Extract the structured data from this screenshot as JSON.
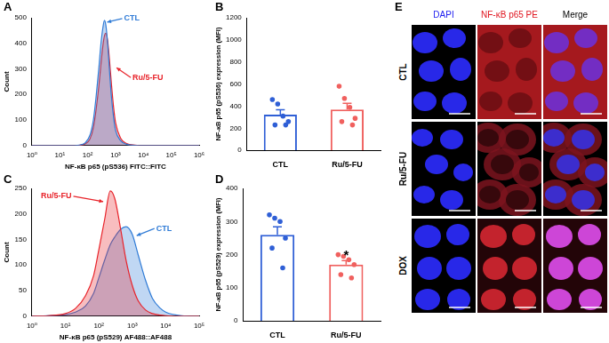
{
  "chart_data": [
    {
      "panel": "A",
      "type": "line",
      "x": [
        1,
        20,
        50,
        80,
        120,
        160,
        200,
        250,
        300,
        350,
        400,
        450,
        520,
        600,
        700,
        850,
        1000,
        1500,
        2500,
        5000,
        10000,
        1000000
      ],
      "series": [
        {
          "name": "CTL",
          "color": "#2f7bd6",
          "values": [
            0,
            0,
            2,
            10,
            40,
            100,
            190,
            300,
            400,
            460,
            490,
            470,
            400,
            300,
            200,
            110,
            60,
            20,
            5,
            1,
            0,
            0
          ]
        },
        {
          "name": "Ru/5-FU",
          "color": "#e8232a",
          "values": [
            0,
            0,
            1,
            6,
            25,
            70,
            140,
            230,
            320,
            390,
            430,
            440,
            410,
            340,
            250,
            150,
            90,
            30,
            8,
            2,
            0,
            0
          ]
        }
      ],
      "x_label": "NF-κB p65 (pS536) FITC::FITC",
      "y_label": "Count",
      "log": "x",
      "xlim": [
        1,
        1000000
      ],
      "xticks": [
        {
          "value": 1,
          "label": "10⁰"
        },
        {
          "value": 10,
          "label": "10¹"
        },
        {
          "value": 100,
          "label": "10²"
        },
        {
          "value": 1000,
          "label": "10³"
        },
        {
          "value": 10000,
          "label": "10⁴"
        },
        {
          "value": 100000,
          "label": "10⁵"
        },
        {
          "value": 1000000,
          "label": "10⁶"
        }
      ],
      "ylim": [
        0,
        500
      ],
      "yticks": [
        0,
        100,
        200,
        300,
        400,
        500
      ],
      "grid": false
    },
    {
      "panel": "B",
      "type": "bar",
      "categories": [
        "CTL",
        "Ru/5-FU"
      ],
      "values": [
        323,
        370
      ],
      "errors": [
        45,
        55
      ],
      "points": [
        [
          460,
          420,
          310,
          260,
          230,
          230
        ],
        [
          580,
          470,
          390,
          290,
          260,
          230
        ]
      ],
      "colors": [
        "#2f5fd6",
        "#f0605e"
      ],
      "y_label": "NF-κB p65 (pS536) expression (MFI)",
      "ylim": [
        0,
        1200
      ],
      "yticks": [
        0,
        200,
        400,
        600,
        800,
        1000,
        1200
      ],
      "grid": false
    },
    {
      "panel": "C",
      "type": "line",
      "x": [
        1,
        3,
        10,
        20,
        40,
        70,
        100,
        150,
        220,
        300,
        450,
        650,
        1000,
        1500,
        2500,
        4000,
        7000,
        10000,
        30000,
        100000
      ],
      "series": [
        {
          "name": "Ru/5-FU",
          "color": "#e8232a",
          "values": [
            0,
            1,
            5,
            15,
            40,
            80,
            130,
            190,
            245,
            230,
            170,
            110,
            60,
            30,
            12,
            5,
            2,
            1,
            0,
            0
          ]
        },
        {
          "name": "CTL",
          "color": "#2f7bd6",
          "values": [
            0,
            1,
            3,
            8,
            20,
            45,
            75,
            110,
            140,
            155,
            170,
            175,
            160,
            120,
            70,
            35,
            15,
            8,
            1,
            0
          ]
        }
      ],
      "x_label": "NF-κB p65 (pS529) AF488::AF488",
      "y_label": "Count",
      "log": "x",
      "xlim": [
        1,
        100000
      ],
      "xticks": [
        {
          "value": 1,
          "label": "10⁰"
        },
        {
          "value": 10,
          "label": "10¹"
        },
        {
          "value": 100,
          "label": "10²"
        },
        {
          "value": 1000,
          "label": "10³"
        },
        {
          "value": 10000,
          "label": "10⁴"
        },
        {
          "value": 100000,
          "label": "10⁵"
        }
      ],
      "ylim": [
        0,
        250
      ],
      "yticks": [
        0,
        50,
        100,
        150,
        200,
        250
      ],
      "grid": false
    },
    {
      "panel": "D",
      "type": "bar",
      "categories": [
        "CTL",
        "Ru/5-FU"
      ],
      "values": [
        260,
        170
      ],
      "errors": [
        24,
        12
      ],
      "points": [
        [
          320,
          310,
          300,
          250,
          220,
          160
        ],
        [
          200,
          195,
          185,
          170,
          140,
          130
        ]
      ],
      "colors": [
        "#2f5fd6",
        "#f0605e"
      ],
      "annotations": [
        {
          "category": "Ru/5-FU",
          "text": "*"
        }
      ],
      "y_label": "NF-κB p65 (pS529) expression (MFI)",
      "ylim": [
        0,
        400
      ],
      "yticks": [
        0,
        100,
        200,
        300,
        400
      ],
      "grid": false
    }
  ],
  "image_panel": {
    "panel": "E",
    "columns": [
      {
        "text": "DAPI",
        "color": "#1c1cf0"
      },
      {
        "text": "NF-κB p65 PE",
        "color": "#e0141e"
      },
      {
        "text": "Merge",
        "color": "#000000"
      }
    ],
    "rows": [
      "CTL",
      "Ru/5-FU",
      "DOX"
    ]
  }
}
